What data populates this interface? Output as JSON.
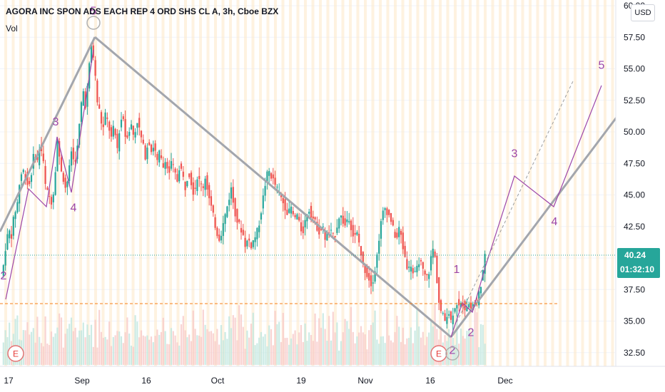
{
  "header": {
    "title": "AGORA INC SPON ADS EACH REP 4 ORD SHS CL A, 3h, Cboe BZX",
    "volume_label": "Vol",
    "currency": "USD"
  },
  "colors": {
    "up": "#26a69a",
    "down": "#ef5350",
    "wave": "#9c45a8",
    "trendline": "#a3a6ad",
    "price_line": "#26a69a",
    "dashed_level": "#f57f17",
    "event_marker": "#e57373"
  },
  "price_badge": {
    "price": "40.24",
    "countdown": "01:32:10"
  },
  "event_markers": [
    "E",
    "E"
  ],
  "chart_data": {
    "type": "candlestick",
    "title": "AGORA INC SPON ADS EACH REP 4 ORD SHS CL A, 3h, Cboe BZX",
    "ylim": [
      31.5,
      60
    ],
    "y_ticks": [
      "32.50",
      "35.00",
      "37.50",
      "40.00",
      "42.50",
      "45.00",
      "47.50",
      "50.00",
      "52.50",
      "55.00",
      "57.50",
      "60.00"
    ],
    "x_ticks": [
      "17",
      "Sep",
      "16",
      "Oct",
      "19",
      "Nov",
      "16",
      "Dec"
    ],
    "last_price": 40.24,
    "dashed_level": 36.5,
    "price_path": [
      [
        0,
        38.2
      ],
      [
        4,
        39.0
      ],
      [
        8,
        41.0
      ],
      [
        12,
        42.2
      ],
      [
        16,
        41.8
      ],
      [
        20,
        43.5
      ],
      [
        24,
        44.2
      ],
      [
        28,
        46.3
      ],
      [
        32,
        47.0
      ],
      [
        36,
        46.5
      ],
      [
        40,
        45.5
      ],
      [
        44,
        46.8
      ],
      [
        48,
        48.5
      ],
      [
        52,
        47.5
      ],
      [
        56,
        49.0
      ],
      [
        60,
        48.0
      ],
      [
        64,
        45.5
      ],
      [
        68,
        45.0
      ],
      [
        72,
        44.5
      ],
      [
        76,
        45.5
      ],
      [
        80,
        49.5
      ],
      [
        84,
        47.5
      ],
      [
        88,
        46.5
      ],
      [
        92,
        45.5
      ],
      [
        96,
        46.5
      ],
      [
        100,
        48.5
      ],
      [
        104,
        47.5
      ],
      [
        108,
        48.5
      ],
      [
        112,
        51.0
      ],
      [
        116,
        53.5
      ],
      [
        120,
        52.0
      ],
      [
        124,
        54.5
      ],
      [
        128,
        57.0
      ],
      [
        132,
        55.5
      ],
      [
        136,
        52.5
      ],
      [
        140,
        51.5
      ],
      [
        144,
        50.0
      ],
      [
        148,
        51.5
      ],
      [
        152,
        50.5
      ],
      [
        156,
        49.5
      ],
      [
        160,
        50.5
      ],
      [
        164,
        48.5
      ],
      [
        168,
        50.5
      ],
      [
        172,
        51.5
      ],
      [
        176,
        49.5
      ],
      [
        180,
        50.0
      ],
      [
        184,
        50.5
      ],
      [
        188,
        49.5
      ],
      [
        192,
        51.0
      ],
      [
        196,
        50.0
      ],
      [
        200,
        49.0
      ],
      [
        204,
        48.0
      ],
      [
        208,
        49.5
      ],
      [
        212,
        48.5
      ],
      [
        216,
        49.0
      ],
      [
        220,
        47.5
      ],
      [
        224,
        48.5
      ],
      [
        228,
        47.0
      ],
      [
        232,
        48.0
      ],
      [
        236,
        46.5
      ],
      [
        240,
        47.5
      ],
      [
        244,
        47.0
      ],
      [
        248,
        46.0
      ],
      [
        252,
        47.5
      ],
      [
        256,
        46.5
      ],
      [
        260,
        45.5
      ],
      [
        264,
        47.0
      ],
      [
        268,
        46.0
      ],
      [
        272,
        45.0
      ],
      [
        276,
        46.5
      ],
      [
        280,
        46.0
      ],
      [
        284,
        45.5
      ],
      [
        288,
        46.5
      ],
      [
        292,
        45.0
      ],
      [
        296,
        44.0
      ],
      [
        300,
        43.0
      ],
      [
        304,
        42.0
      ],
      [
        308,
        41.5
      ],
      [
        312,
        42.5
      ],
      [
        316,
        43.5
      ],
      [
        320,
        44.5
      ],
      [
        324,
        45.5
      ],
      [
        328,
        44.0
      ],
      [
        332,
        43.0
      ],
      [
        336,
        42.5
      ],
      [
        340,
        42.0
      ],
      [
        344,
        41.0
      ],
      [
        348,
        41.5
      ],
      [
        352,
        41.0
      ],
      [
        356,
        41.5
      ],
      [
        360,
        42.0
      ],
      [
        364,
        43.0
      ],
      [
        368,
        44.5
      ],
      [
        372,
        46.0
      ],
      [
        376,
        47.0
      ],
      [
        380,
        46.5
      ],
      [
        384,
        46.0
      ],
      [
        388,
        45.5
      ],
      [
        392,
        45.0
      ],
      [
        396,
        44.5
      ],
      [
        400,
        44.0
      ],
      [
        404,
        43.5
      ],
      [
        408,
        44.0
      ],
      [
        412,
        43.0
      ],
      [
        416,
        43.5
      ],
      [
        420,
        42.5
      ],
      [
        424,
        42.0
      ],
      [
        428,
        43.0
      ],
      [
        432,
        44.0
      ],
      [
        436,
        43.5
      ],
      [
        440,
        43.0
      ],
      [
        444,
        42.5
      ],
      [
        448,
        42.0
      ],
      [
        452,
        42.5
      ],
      [
        456,
        41.5
      ],
      [
        460,
        42.0
      ],
      [
        464,
        42.0
      ],
      [
        468,
        41.5
      ],
      [
        472,
        42.5
      ],
      [
        476,
        43.5
      ],
      [
        480,
        43.0
      ],
      [
        484,
        42.5
      ],
      [
        488,
        43.5
      ],
      [
        492,
        42.5
      ],
      [
        496,
        41.5
      ],
      [
        500,
        42.0
      ],
      [
        504,
        41.0
      ],
      [
        508,
        39.5
      ],
      [
        512,
        39.0
      ],
      [
        516,
        38.5
      ],
      [
        520,
        38.0
      ],
      [
        524,
        38.5
      ],
      [
        528,
        40.0
      ],
      [
        532,
        42.0
      ],
      [
        536,
        43.5
      ],
      [
        540,
        44.0
      ],
      [
        544,
        43.5
      ],
      [
        548,
        43.0
      ],
      [
        552,
        42.0
      ],
      [
        556,
        41.5
      ],
      [
        560,
        42.5
      ],
      [
        564,
        41.0
      ],
      [
        568,
        40.0
      ],
      [
        572,
        39.0
      ],
      [
        576,
        39.5
      ],
      [
        580,
        38.5
      ],
      [
        584,
        39.0
      ],
      [
        588,
        40.0
      ],
      [
        592,
        39.0
      ],
      [
        596,
        38.5
      ],
      [
        600,
        38.5
      ],
      [
        604,
        40.0
      ],
      [
        608,
        41.0
      ],
      [
        616,
        36.0
      ],
      [
        620,
        35.5
      ],
      [
        624,
        35.0
      ],
      [
        628,
        36.0
      ],
      [
        632,
        35.0
      ],
      [
        636,
        36.0
      ],
      [
        640,
        36.5
      ],
      [
        644,
        36.0
      ],
      [
        648,
        36.5
      ],
      [
        652,
        36.0
      ],
      [
        656,
        36.5
      ],
      [
        660,
        36.0
      ],
      [
        664,
        36.5
      ],
      [
        668,
        36.2
      ],
      [
        672,
        37.5
      ],
      [
        676,
        38.5
      ],
      [
        680,
        40.24
      ]
    ],
    "volume_profile": [
      0.3,
      0.22,
      0.35,
      0.26,
      0.4,
      0.32,
      0.28,
      0.45,
      0.38,
      0.3,
      0.25,
      0.34,
      0.29,
      0.42,
      0.36,
      0.24,
      0.31,
      0.27,
      0.33,
      0.39,
      0.21,
      0.28,
      0.35,
      0.3,
      0.26,
      0.48,
      0.37,
      0.32,
      0.29,
      0.41,
      0.34,
      0.26,
      0.22,
      0.3,
      0.28,
      0.36,
      0.25,
      0.31,
      0.27,
      0.33,
      0.44,
      0.29,
      0.23,
      0.35,
      0.3,
      0.38,
      0.27,
      0.32,
      0.26,
      0.5,
      0.31,
      0.28,
      0.34,
      0.29,
      0.37,
      0.25
    ],
    "elliott_labels": [
      {
        "label": "2",
        "x": 5,
        "y": 38.3
      },
      {
        "label": "3",
        "x": 78,
        "y": 50.5
      },
      {
        "label": "4",
        "x": 103,
        "y": 43.7
      },
      {
        "label": "5",
        "x": 131,
        "y": 59.3
      },
      {
        "label": "1",
        "x": 640,
        "y": 38.8
      },
      {
        "label": "2",
        "x": 660,
        "y": 33.8
      },
      {
        "label": "2",
        "x": 634,
        "y": 32.4
      },
      {
        "label": "3",
        "x": 721,
        "y": 48.0
      },
      {
        "label": "4",
        "x": 777,
        "y": 42.6
      },
      {
        "label": "5",
        "x": 843,
        "y": 55.0
      }
    ]
  }
}
